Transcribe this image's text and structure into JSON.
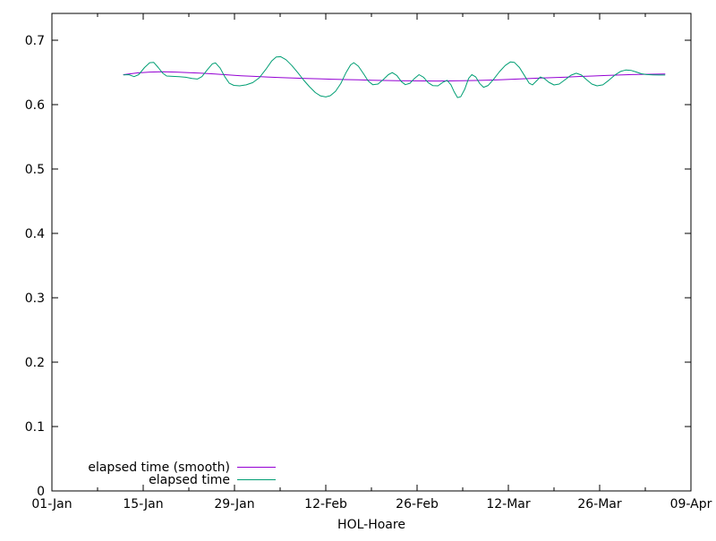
{
  "chart_data": {
    "type": "line",
    "title": "",
    "xlabel": "HOL-Hoare",
    "ylabel": "",
    "grid": false,
    "legend_position": "bottom-left-inside",
    "x_axis": {
      "unit": "date",
      "range_days": [
        0,
        98
      ],
      "major_tick_days": [
        0,
        14,
        28,
        42,
        56,
        70,
        84,
        98
      ],
      "major_tick_labels": [
        "01-Jan",
        "15-Jan",
        "29-Jan",
        "12-Feb",
        "26-Feb",
        "12-Mar",
        "26-Mar",
        "09-Apr"
      ],
      "minor_tick_days": [
        7,
        21,
        35,
        49,
        63,
        77,
        91
      ]
    },
    "y_axis": {
      "range": [
        0,
        0.742
      ],
      "tick_values": [
        0,
        0.1,
        0.2,
        0.3,
        0.4,
        0.5,
        0.6,
        0.7
      ],
      "tick_labels": [
        "0",
        "0.1",
        "0.2",
        "0.3",
        "0.4",
        "0.5",
        "0.6",
        "0.7"
      ]
    },
    "series": [
      {
        "name": "elapsed time (smooth)",
        "color": "#9400d3",
        "points_day_value": [
          [
            11,
            0.6468
          ],
          [
            13,
            0.6495
          ],
          [
            15,
            0.6508
          ],
          [
            17,
            0.6512
          ],
          [
            19,
            0.6508
          ],
          [
            21,
            0.65
          ],
          [
            23,
            0.649
          ],
          [
            25,
            0.6478
          ],
          [
            27,
            0.6465
          ],
          [
            29,
            0.6452
          ],
          [
            31,
            0.6442
          ],
          [
            33,
            0.6432
          ],
          [
            35,
            0.6424
          ],
          [
            37,
            0.6417
          ],
          [
            39,
            0.641
          ],
          [
            41,
            0.6404
          ],
          [
            43,
            0.6398
          ],
          [
            45,
            0.6392
          ],
          [
            47,
            0.6387
          ],
          [
            49,
            0.6382
          ],
          [
            51,
            0.6378
          ],
          [
            53,
            0.6375
          ],
          [
            55,
            0.6373
          ],
          [
            57,
            0.6371
          ],
          [
            59,
            0.637
          ],
          [
            61,
            0.6371
          ],
          [
            63,
            0.6374
          ],
          [
            65,
            0.6378
          ],
          [
            67,
            0.6384
          ],
          [
            69,
            0.6391
          ],
          [
            71,
            0.6399
          ],
          [
            73,
            0.6407
          ],
          [
            75,
            0.6415
          ],
          [
            77,
            0.6423
          ],
          [
            79,
            0.6431
          ],
          [
            81,
            0.644
          ],
          [
            83,
            0.6448
          ],
          [
            85,
            0.6456
          ],
          [
            87,
            0.6463
          ],
          [
            89,
            0.6469
          ],
          [
            91,
            0.6474
          ],
          [
            93,
            0.6477
          ],
          [
            94,
            0.6478
          ]
        ]
      },
      {
        "name": "elapsed time",
        "color": "#009e73",
        "points_day_value": [
          [
            11,
            0.6465
          ],
          [
            11.8,
            0.6468
          ],
          [
            12.6,
            0.6438
          ],
          [
            13.3,
            0.6468
          ],
          [
            14.2,
            0.658
          ],
          [
            15,
            0.6655
          ],
          [
            15.6,
            0.666
          ],
          [
            16.3,
            0.658
          ],
          [
            17,
            0.649
          ],
          [
            17.6,
            0.6448
          ],
          [
            18.5,
            0.6442
          ],
          [
            19.5,
            0.6438
          ],
          [
            20.5,
            0.6428
          ],
          [
            21.5,
            0.641
          ],
          [
            22.3,
            0.64
          ],
          [
            23,
            0.6438
          ],
          [
            23.8,
            0.654
          ],
          [
            24.6,
            0.6637
          ],
          [
            25.1,
            0.665
          ],
          [
            25.8,
            0.657
          ],
          [
            26.5,
            0.6438
          ],
          [
            27.2,
            0.6335
          ],
          [
            27.9,
            0.6302
          ],
          [
            28.8,
            0.6295
          ],
          [
            29.8,
            0.631
          ],
          [
            30.8,
            0.6345
          ],
          [
            31.8,
            0.642
          ],
          [
            32.8,
            0.655
          ],
          [
            33.7,
            0.668
          ],
          [
            34.4,
            0.6742
          ],
          [
            35.1,
            0.6748
          ],
          [
            35.9,
            0.67
          ],
          [
            36.8,
            0.661
          ],
          [
            37.7,
            0.65
          ],
          [
            38.6,
            0.6385
          ],
          [
            39.5,
            0.628
          ],
          [
            40.4,
            0.619
          ],
          [
            41.2,
            0.6138
          ],
          [
            42,
            0.6122
          ],
          [
            42.7,
            0.6142
          ],
          [
            43.5,
            0.621
          ],
          [
            44.3,
            0.633
          ],
          [
            45.1,
            0.65
          ],
          [
            45.8,
            0.662
          ],
          [
            46.3,
            0.6655
          ],
          [
            47,
            0.66
          ],
          [
            47.8,
            0.648
          ],
          [
            48.5,
            0.637
          ],
          [
            49.2,
            0.6312
          ],
          [
            50,
            0.6322
          ],
          [
            50.8,
            0.639
          ],
          [
            51.6,
            0.6468
          ],
          [
            52.2,
            0.65
          ],
          [
            52.9,
            0.6455
          ],
          [
            53.6,
            0.636
          ],
          [
            54.2,
            0.6312
          ],
          [
            54.9,
            0.6335
          ],
          [
            55.6,
            0.641
          ],
          [
            56.3,
            0.6468
          ],
          [
            57,
            0.6428
          ],
          [
            57.7,
            0.6345
          ],
          [
            58.4,
            0.6298
          ],
          [
            59.2,
            0.6295
          ],
          [
            60,
            0.6352
          ],
          [
            60.6,
            0.638
          ],
          [
            61.2,
            0.631
          ],
          [
            61.7,
            0.62
          ],
          [
            62.2,
            0.6112
          ],
          [
            62.7,
            0.6125
          ],
          [
            63.3,
            0.624
          ],
          [
            63.9,
            0.641
          ],
          [
            64.4,
            0.647
          ],
          [
            65,
            0.6432
          ],
          [
            65.6,
            0.6332
          ],
          [
            66.2,
            0.6272
          ],
          [
            66.9,
            0.63
          ],
          [
            67.7,
            0.639
          ],
          [
            68.6,
            0.651
          ],
          [
            69.5,
            0.661
          ],
          [
            70.3,
            0.6665
          ],
          [
            70.9,
            0.666
          ],
          [
            71.7,
            0.658
          ],
          [
            72.5,
            0.645
          ],
          [
            73.2,
            0.6335
          ],
          [
            73.7,
            0.631
          ],
          [
            74.3,
            0.637
          ],
          [
            74.9,
            0.6432
          ],
          [
            75.5,
            0.641
          ],
          [
            76.2,
            0.635
          ],
          [
            77,
            0.6308
          ],
          [
            77.8,
            0.6322
          ],
          [
            78.7,
            0.639
          ],
          [
            79.6,
            0.646
          ],
          [
            80.4,
            0.649
          ],
          [
            81.2,
            0.6462
          ],
          [
            82,
            0.639
          ],
          [
            82.8,
            0.6322
          ],
          [
            83.6,
            0.6295
          ],
          [
            84.5,
            0.631
          ],
          [
            85.4,
            0.638
          ],
          [
            86.3,
            0.646
          ],
          [
            87.2,
            0.6518
          ],
          [
            88,
            0.654
          ],
          [
            88.8,
            0.6535
          ],
          [
            89.6,
            0.651
          ],
          [
            90.4,
            0.6482
          ],
          [
            91.2,
            0.647
          ],
          [
            92.2,
            0.6465
          ],
          [
            93.1,
            0.6462
          ],
          [
            94,
            0.6462
          ]
        ]
      }
    ]
  },
  "colors": {
    "background": "#ffffff",
    "axis": "#000000",
    "text": "#000000"
  }
}
